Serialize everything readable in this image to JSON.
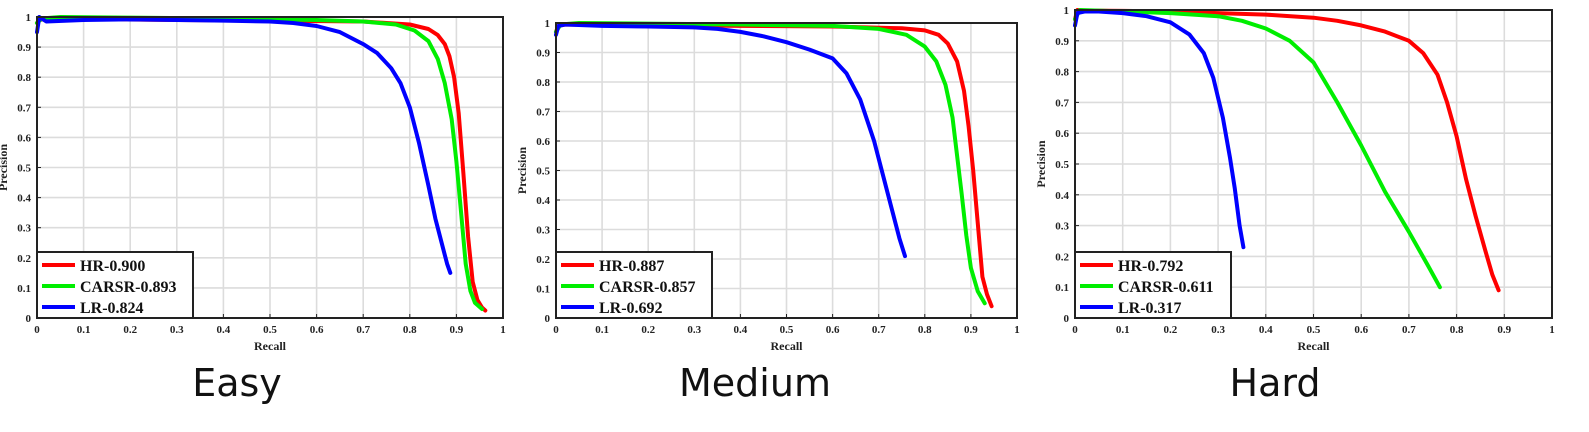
{
  "figure": {
    "captions": [
      "Easy",
      "Medium",
      "Hard"
    ]
  },
  "chart_data": [
    {
      "type": "line",
      "caption": "Easy",
      "xlabel": "Recall",
      "ylabel": "Precision",
      "xlim": [
        0,
        1
      ],
      "ylim": [
        0,
        1
      ],
      "xticks": [
        "0",
        "0.1",
        "0.2",
        "0.3",
        "0.4",
        "0.5",
        "0.6",
        "0.7",
        "0.8",
        "0.9",
        "1"
      ],
      "yticks": [
        "0",
        "0.1",
        "0.2",
        "0.3",
        "0.4",
        "0.5",
        "0.6",
        "0.7",
        "0.8",
        "0.9",
        "1"
      ],
      "grid": true,
      "legend_position": "bottom-left",
      "series": [
        {
          "name": "HR-0.900",
          "color": "#ff0000",
          "x": [
            0,
            0.005,
            0.02,
            0.1,
            0.3,
            0.5,
            0.7,
            0.8,
            0.84,
            0.86,
            0.875,
            0.885,
            0.895,
            0.905,
            0.915,
            0.925,
            0.935,
            0.945,
            0.955,
            0.962
          ],
          "y": [
            0.98,
            0.99,
            0.995,
            0.993,
            0.99,
            0.988,
            0.985,
            0.975,
            0.96,
            0.94,
            0.91,
            0.87,
            0.8,
            0.68,
            0.48,
            0.27,
            0.12,
            0.06,
            0.035,
            0.025
          ]
        },
        {
          "name": "CARSR-0.893",
          "color": "#00ee00",
          "x": [
            0,
            0.01,
            0.05,
            0.2,
            0.4,
            0.6,
            0.7,
            0.77,
            0.81,
            0.84,
            0.86,
            0.875,
            0.89,
            0.9,
            0.91,
            0.92,
            0.93,
            0.94,
            0.955
          ],
          "y": [
            0.98,
            0.995,
            1.0,
            0.998,
            0.995,
            0.99,
            0.985,
            0.975,
            0.955,
            0.92,
            0.86,
            0.78,
            0.66,
            0.52,
            0.35,
            0.18,
            0.09,
            0.05,
            0.03
          ]
        },
        {
          "name": "LR-0.824",
          "color": "#0000ff",
          "x": [
            0,
            0.005,
            0.02,
            0.1,
            0.2,
            0.3,
            0.4,
            0.5,
            0.55,
            0.6,
            0.65,
            0.7,
            0.73,
            0.76,
            0.78,
            0.8,
            0.82,
            0.84,
            0.855,
            0.87,
            0.88,
            0.887
          ],
          "y": [
            0.95,
            1.0,
            0.985,
            0.99,
            0.992,
            0.99,
            0.988,
            0.985,
            0.98,
            0.97,
            0.95,
            0.91,
            0.88,
            0.83,
            0.78,
            0.7,
            0.58,
            0.44,
            0.33,
            0.24,
            0.18,
            0.15
          ]
        }
      ]
    },
    {
      "type": "line",
      "caption": "Medium",
      "xlabel": "Recall",
      "ylabel": "Precision",
      "xlim": [
        0,
        1
      ],
      "ylim": [
        0,
        1
      ],
      "xticks": [
        "0",
        "0.1",
        "0.2",
        "0.3",
        "0.4",
        "0.5",
        "0.6",
        "0.7",
        "0.8",
        "0.9",
        "1"
      ],
      "yticks": [
        "0",
        "0.1",
        "0.2",
        "0.3",
        "0.4",
        "0.5",
        "0.6",
        "0.7",
        "0.8",
        "0.9",
        "1"
      ],
      "grid": true,
      "legend_position": "bottom-left",
      "series": [
        {
          "name": "HR-0.887",
          "color": "#ff0000",
          "x": [
            0,
            0.005,
            0.02,
            0.2,
            0.4,
            0.6,
            0.75,
            0.8,
            0.83,
            0.85,
            0.87,
            0.885,
            0.895,
            0.905,
            0.915,
            0.925,
            0.935,
            0.945
          ],
          "y": [
            0.97,
            0.99,
            0.995,
            0.993,
            0.99,
            0.988,
            0.982,
            0.975,
            0.96,
            0.93,
            0.87,
            0.77,
            0.65,
            0.5,
            0.32,
            0.14,
            0.08,
            0.04
          ]
        },
        {
          "name": "CARSR-0.857",
          "color": "#00ee00",
          "x": [
            0,
            0.01,
            0.05,
            0.2,
            0.4,
            0.6,
            0.7,
            0.76,
            0.8,
            0.825,
            0.845,
            0.86,
            0.87,
            0.88,
            0.89,
            0.9,
            0.915,
            0.93
          ],
          "y": [
            0.97,
            0.995,
            1.0,
            0.998,
            0.995,
            0.99,
            0.98,
            0.96,
            0.92,
            0.87,
            0.79,
            0.68,
            0.55,
            0.42,
            0.28,
            0.17,
            0.09,
            0.05
          ]
        },
        {
          "name": "LR-0.692",
          "color": "#0000ff",
          "x": [
            0,
            0.005,
            0.02,
            0.1,
            0.2,
            0.3,
            0.35,
            0.4,
            0.45,
            0.5,
            0.55,
            0.6,
            0.63,
            0.66,
            0.69,
            0.71,
            0.73,
            0.745,
            0.757
          ],
          "y": [
            0.96,
            0.99,
            0.995,
            0.99,
            0.988,
            0.985,
            0.98,
            0.97,
            0.955,
            0.935,
            0.91,
            0.88,
            0.83,
            0.74,
            0.6,
            0.48,
            0.36,
            0.27,
            0.21
          ]
        }
      ]
    },
    {
      "type": "line",
      "caption": "Hard",
      "xlabel": "Recall",
      "ylabel": "Precision",
      "xlim": [
        0,
        1
      ],
      "ylim": [
        0,
        1
      ],
      "xticks": [
        "0",
        "0.1",
        "0.2",
        "0.3",
        "0.4",
        "0.5",
        "0.6",
        "0.7",
        "0.8",
        "0.9",
        "1"
      ],
      "yticks": [
        "0",
        "0.1",
        "0.2",
        "0.3",
        "0.4",
        "0.5",
        "0.6",
        "0.7",
        "0.8",
        "0.9",
        "1"
      ],
      "grid": true,
      "legend_position": "bottom-left",
      "series": [
        {
          "name": "HR-0.792",
          "color": "#ff0000",
          "x": [
            0,
            0.005,
            0.02,
            0.1,
            0.2,
            0.3,
            0.4,
            0.5,
            0.55,
            0.6,
            0.65,
            0.7,
            0.73,
            0.76,
            0.78,
            0.8,
            0.82,
            0.84,
            0.86,
            0.875,
            0.888
          ],
          "y": [
            0.97,
            1.0,
            0.998,
            0.997,
            0.995,
            0.99,
            0.985,
            0.975,
            0.965,
            0.95,
            0.93,
            0.9,
            0.86,
            0.79,
            0.7,
            0.59,
            0.45,
            0.33,
            0.22,
            0.14,
            0.09
          ]
        },
        {
          "name": "CARSR-0.611",
          "color": "#00ee00",
          "x": [
            0,
            0.01,
            0.05,
            0.1,
            0.2,
            0.3,
            0.35,
            0.4,
            0.45,
            0.5,
            0.55,
            0.6,
            0.65,
            0.7,
            0.74,
            0.765
          ],
          "y": [
            0.97,
            1.0,
            0.998,
            0.995,
            0.99,
            0.98,
            0.965,
            0.94,
            0.9,
            0.83,
            0.7,
            0.56,
            0.41,
            0.28,
            0.17,
            0.1
          ]
        },
        {
          "name": "LR-0.317",
          "color": "#0000ff",
          "x": [
            0,
            0.005,
            0.02,
            0.05,
            0.1,
            0.15,
            0.2,
            0.24,
            0.27,
            0.29,
            0.31,
            0.325,
            0.335,
            0.345,
            0.353
          ],
          "y": [
            0.95,
            0.99,
            0.995,
            0.995,
            0.99,
            0.98,
            0.96,
            0.92,
            0.86,
            0.78,
            0.65,
            0.52,
            0.42,
            0.3,
            0.23
          ]
        }
      ]
    }
  ]
}
